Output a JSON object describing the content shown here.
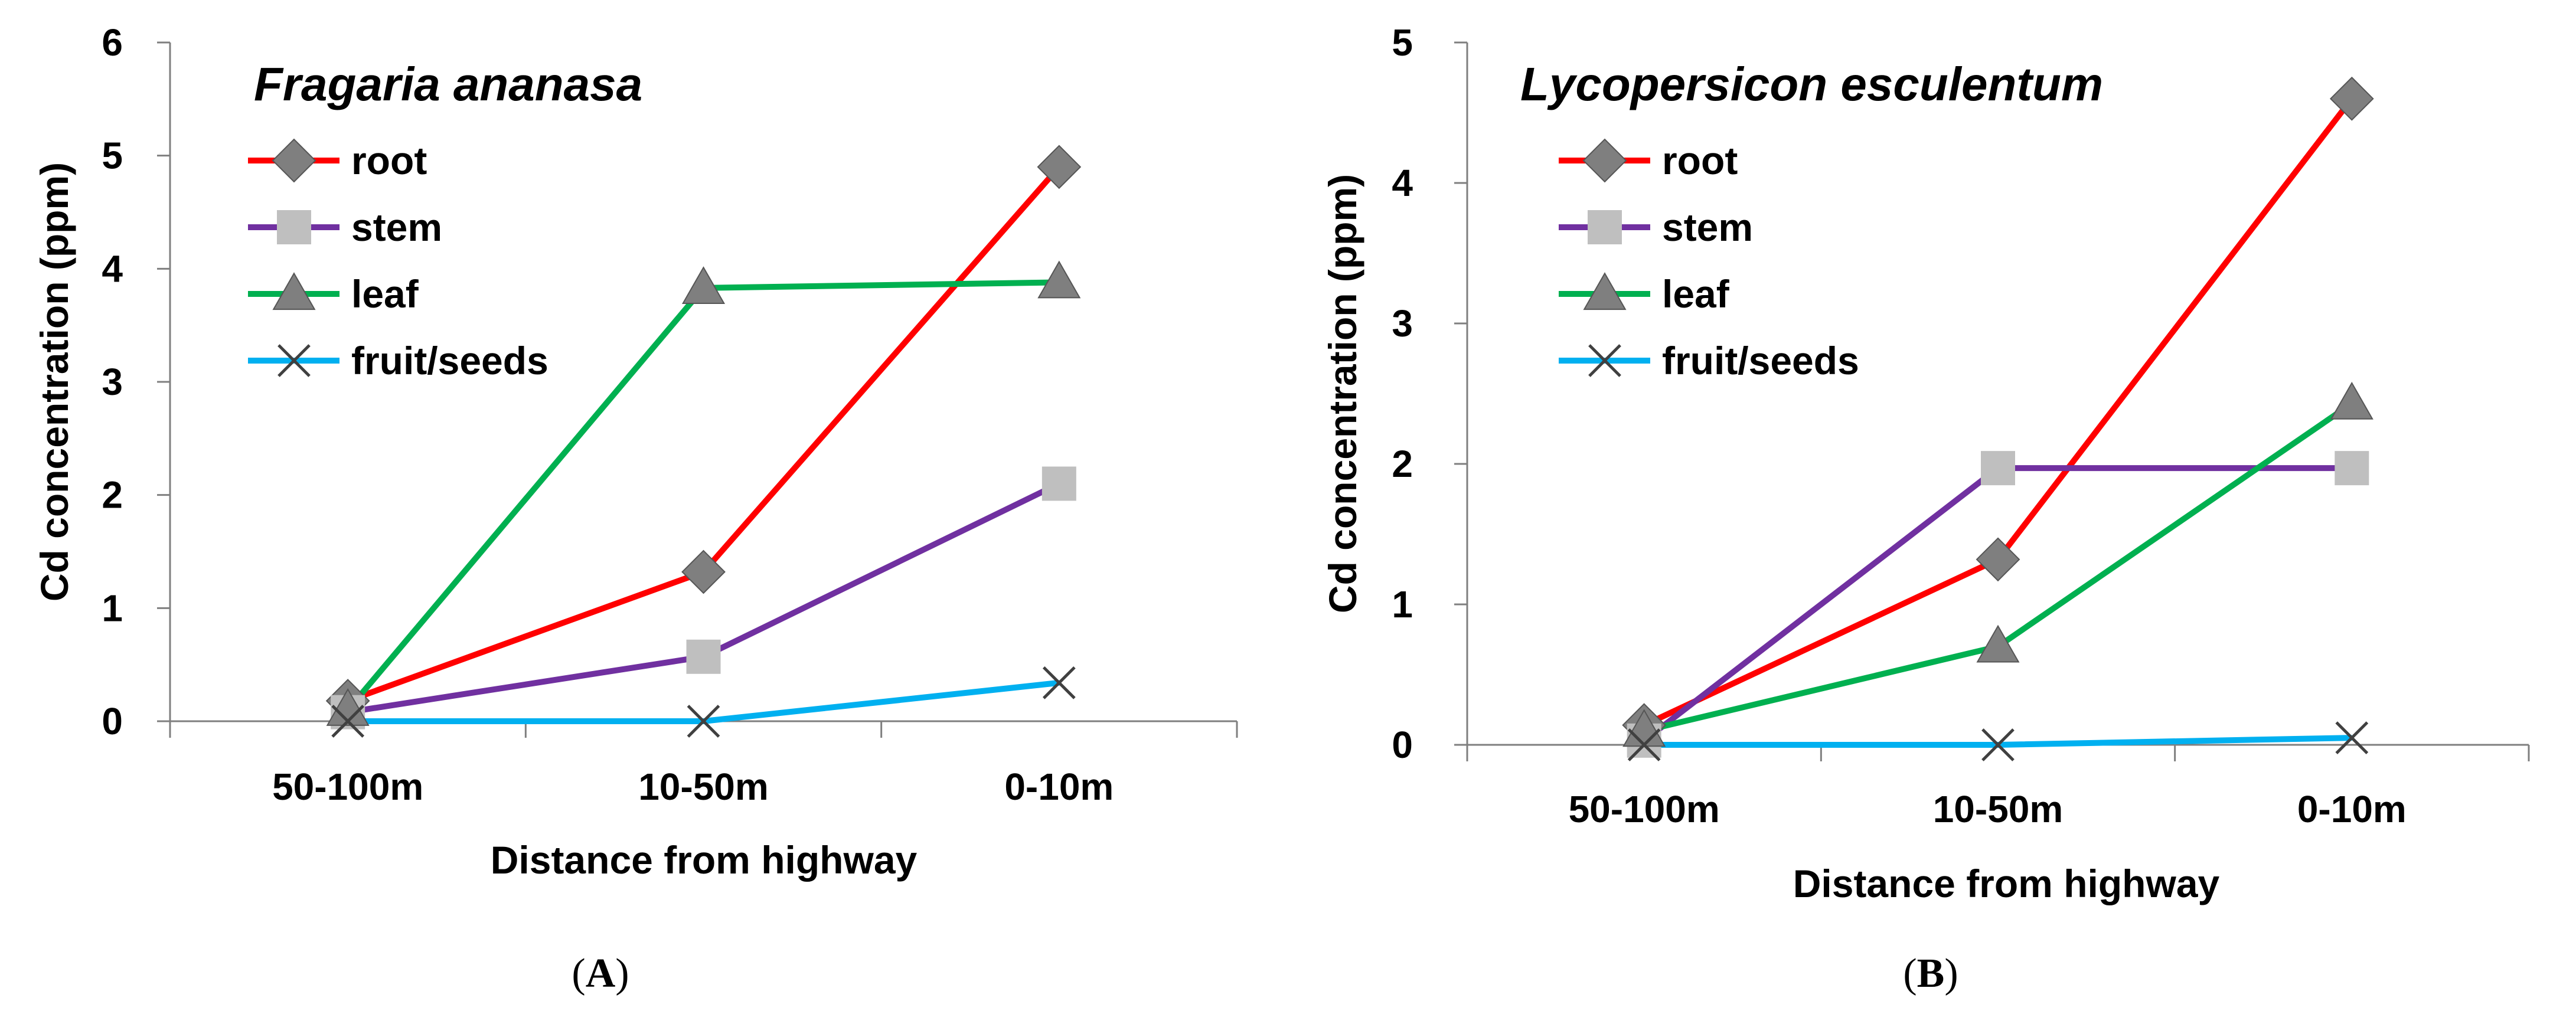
{
  "chart_data": [
    {
      "type": "line",
      "title": "Fragaria ananasa",
      "panel_label": "A",
      "xlabel": "Distance from highway",
      "ylabel": "Cd concentration (ppm)",
      "categories": [
        "50-100m",
        "10-50m",
        "0-10m"
      ],
      "ylim": [
        0,
        6
      ],
      "yticks": [
        "0",
        "1",
        "2",
        "3",
        "4",
        "5",
        "6"
      ],
      "legend_position": "top-left",
      "series": [
        {
          "name": "root",
          "color": "#ff0000",
          "marker": "diamond",
          "values": [
            0.18,
            1.32,
            4.9
          ]
        },
        {
          "name": "stem",
          "color": "#7030a0",
          "marker": "square",
          "values": [
            0.08,
            0.57,
            2.1
          ]
        },
        {
          "name": "leaf",
          "color": "#00b050",
          "marker": "triangle",
          "values": [
            0.1,
            3.83,
            3.88
          ]
        },
        {
          "name": "fruit/seeds",
          "color": "#00b0f0",
          "marker": "x",
          "values": [
            0.0,
            0.0,
            0.34
          ]
        }
      ]
    },
    {
      "type": "line",
      "title": "Lycopersicon esculentum",
      "panel_label": "B",
      "xlabel": "Distance from highway",
      "ylabel": "Cd concentration (ppm)",
      "categories": [
        "50-100m",
        "10-50m",
        "0-10m"
      ],
      "ylim": [
        0,
        5
      ],
      "yticks": [
        "0",
        "1",
        "2",
        "3",
        "4",
        "5"
      ],
      "legend_position": "top-left",
      "series": [
        {
          "name": "root",
          "color": "#ff0000",
          "marker": "diamond",
          "values": [
            0.14,
            1.32,
            4.6
          ]
        },
        {
          "name": "stem",
          "color": "#7030a0",
          "marker": "square",
          "values": [
            0.03,
            1.97,
            1.97
          ]
        },
        {
          "name": "leaf",
          "color": "#00b050",
          "marker": "triangle",
          "values": [
            0.1,
            0.7,
            2.43
          ]
        },
        {
          "name": "fruit/seeds",
          "color": "#00b0f0",
          "marker": "x",
          "values": [
            0.0,
            0.0,
            0.05
          ]
        }
      ]
    }
  ],
  "marker_fill": "#7f7f7f",
  "marker_square_fill": "#bfbfbf"
}
